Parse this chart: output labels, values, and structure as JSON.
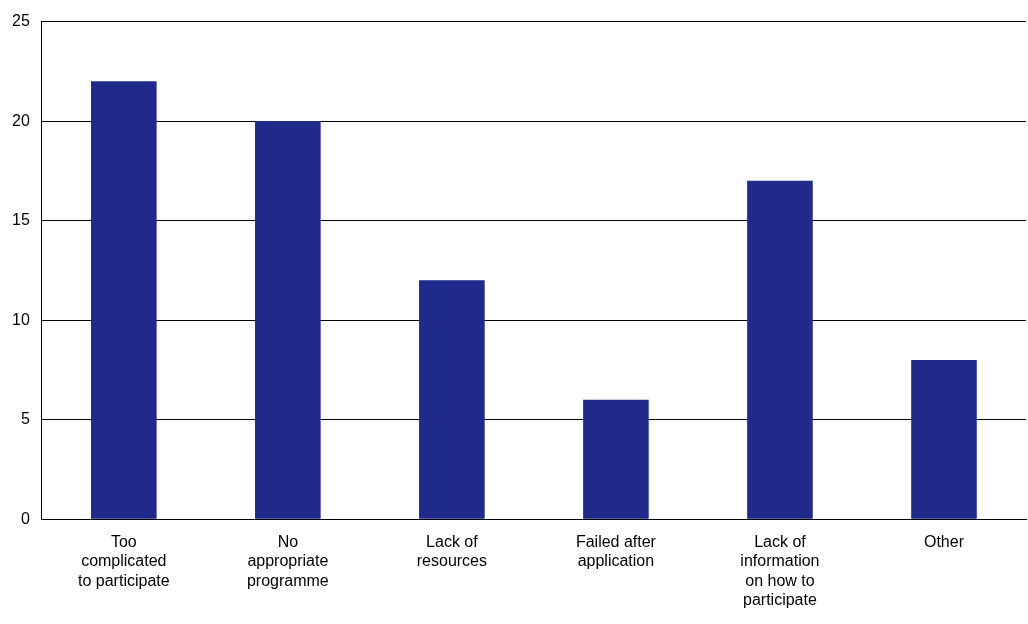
{
  "chart_data": {
    "type": "bar",
    "categories": [
      "Too\ncomplicated\nto participate",
      "No\nappropriate\nprogramme",
      "Lack of\nresources",
      "Failed after\napplication",
      "Lack of\ninformation\non how to\nparticipate",
      "Other"
    ],
    "values": [
      22,
      20,
      12,
      6,
      17,
      8
    ],
    "color": "#1f2a8a",
    "ylim": [
      0,
      25
    ],
    "yticks": [
      0,
      5,
      10,
      15,
      20,
      25
    ],
    "grid": "y"
  }
}
